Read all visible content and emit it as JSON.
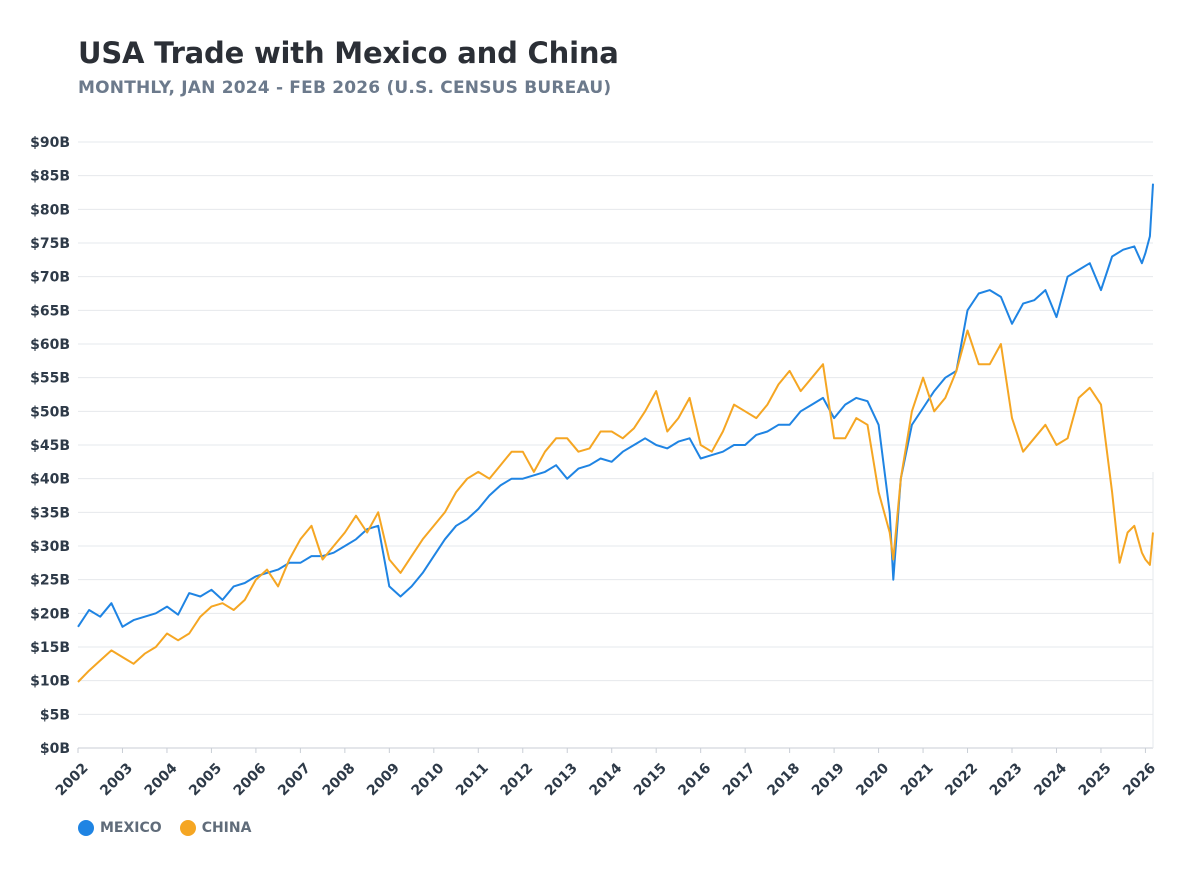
{
  "header": {
    "title": "USA Trade with Mexico and China",
    "subtitle": "MONTHLY, JAN 2024 - FEB 2026 (U.S. CENSUS BUREAU)"
  },
  "colors": {
    "mexico": "#1f84e3",
    "china": "#f5a623",
    "grid": "#e6e8ec",
    "axis": "#c9ced6"
  },
  "chart_data": {
    "type": "line",
    "title": "USA Trade with Mexico and China",
    "subtitle": "MONTHLY, JAN 2024 - FEB 2026 (U.S. CENSUS BUREAU)",
    "xlabel": "",
    "ylabel": "",
    "x_range": [
      2002,
      2026.17
    ],
    "ylim": [
      0,
      90
    ],
    "y_ticks": [
      0,
      5,
      10,
      15,
      20,
      25,
      30,
      35,
      40,
      45,
      50,
      55,
      60,
      65,
      70,
      75,
      80,
      85,
      90
    ],
    "y_tick_labels": [
      "$0B",
      "$5B",
      "$10B",
      "$15B",
      "$20B",
      "$25B",
      "$30B",
      "$35B",
      "$40B",
      "$45B",
      "$50B",
      "$55B",
      "$60B",
      "$65B",
      "$70B",
      "$75B",
      "$80B",
      "$85B",
      "$90B"
    ],
    "x_ticks": [
      2002,
      2003,
      2004,
      2005,
      2006,
      2007,
      2008,
      2009,
      2010,
      2011,
      2012,
      2013,
      2014,
      2015,
      2016,
      2017,
      2018,
      2019,
      2020,
      2021,
      2022,
      2023,
      2024,
      2025,
      2026
    ],
    "x_tick_labels": [
      "2002",
      "2003",
      "2004",
      "2005",
      "2006",
      "2007",
      "2008",
      "2009",
      "2010",
      "2011",
      "2012",
      "2013",
      "2014",
      "2015",
      "2016",
      "2017",
      "2018",
      "2019",
      "2020",
      "2021",
      "2022",
      "2023",
      "2024",
      "2025",
      "2026"
    ],
    "grid": true,
    "legend": "bottom-left",
    "series": [
      {
        "name": "MEXICO",
        "color": "#1f84e3",
        "points": [
          [
            2002.0,
            18
          ],
          [
            2002.25,
            20.5
          ],
          [
            2002.5,
            19.5
          ],
          [
            2002.75,
            21.5
          ],
          [
            2003.0,
            18
          ],
          [
            2003.25,
            19
          ],
          [
            2003.5,
            19.5
          ],
          [
            2003.75,
            20
          ],
          [
            2004.0,
            21
          ],
          [
            2004.25,
            19.8
          ],
          [
            2004.5,
            23
          ],
          [
            2004.75,
            22.5
          ],
          [
            2005.0,
            23.5
          ],
          [
            2005.25,
            22
          ],
          [
            2005.5,
            24
          ],
          [
            2005.75,
            24.5
          ],
          [
            2006.0,
            25.5
          ],
          [
            2006.25,
            26
          ],
          [
            2006.5,
            26.5
          ],
          [
            2006.75,
            27.5
          ],
          [
            2007.0,
            27.5
          ],
          [
            2007.25,
            28.5
          ],
          [
            2007.5,
            28.5
          ],
          [
            2007.75,
            29
          ],
          [
            2008.0,
            30
          ],
          [
            2008.25,
            31
          ],
          [
            2008.5,
            32.5
          ],
          [
            2008.75,
            33
          ],
          [
            2009.0,
            24
          ],
          [
            2009.25,
            22.5
          ],
          [
            2009.5,
            24
          ],
          [
            2009.75,
            26
          ],
          [
            2010.0,
            28.5
          ],
          [
            2010.25,
            31
          ],
          [
            2010.5,
            33
          ],
          [
            2010.75,
            34
          ],
          [
            2011.0,
            35.5
          ],
          [
            2011.25,
            37.5
          ],
          [
            2011.5,
            39
          ],
          [
            2011.75,
            40
          ],
          [
            2012.0,
            40
          ],
          [
            2012.25,
            40.5
          ],
          [
            2012.5,
            41
          ],
          [
            2012.75,
            42
          ],
          [
            2013.0,
            40
          ],
          [
            2013.25,
            41.5
          ],
          [
            2013.5,
            42
          ],
          [
            2013.75,
            43
          ],
          [
            2014.0,
            42.5
          ],
          [
            2014.25,
            44
          ],
          [
            2014.5,
            45
          ],
          [
            2014.75,
            46
          ],
          [
            2015.0,
            45
          ],
          [
            2015.25,
            44.5
          ],
          [
            2015.5,
            45.5
          ],
          [
            2015.75,
            46
          ],
          [
            2016.0,
            43
          ],
          [
            2016.25,
            43.5
          ],
          [
            2016.5,
            44
          ],
          [
            2016.75,
            45
          ],
          [
            2017.0,
            45
          ],
          [
            2017.25,
            46.5
          ],
          [
            2017.5,
            47
          ],
          [
            2017.75,
            48
          ],
          [
            2018.0,
            48
          ],
          [
            2018.25,
            50
          ],
          [
            2018.5,
            51
          ],
          [
            2018.75,
            52
          ],
          [
            2019.0,
            49
          ],
          [
            2019.25,
            51
          ],
          [
            2019.5,
            52
          ],
          [
            2019.75,
            51.5
          ],
          [
            2020.0,
            48
          ],
          [
            2020.25,
            35
          ],
          [
            2020.33,
            25
          ],
          [
            2020.5,
            40
          ],
          [
            2020.75,
            48
          ],
          [
            2021.0,
            50.5
          ],
          [
            2021.25,
            53
          ],
          [
            2021.5,
            55
          ],
          [
            2021.75,
            56
          ],
          [
            2022.0,
            65
          ],
          [
            2022.25,
            67.5
          ],
          [
            2022.5,
            68
          ],
          [
            2022.75,
            67
          ],
          [
            2023.0,
            63
          ],
          [
            2023.25,
            66
          ],
          [
            2023.5,
            66.5
          ],
          [
            2023.75,
            68
          ],
          [
            2024.0,
            64
          ],
          [
            2024.25,
            70
          ],
          [
            2024.5,
            71
          ],
          [
            2024.75,
            72
          ],
          [
            2025.0,
            68
          ],
          [
            2025.25,
            73
          ],
          [
            2025.5,
            74
          ],
          [
            2025.75,
            74.5
          ],
          [
            2025.92,
            72
          ],
          [
            2026.0,
            73.5
          ],
          [
            2026.1,
            76
          ],
          [
            2026.17,
            83.8
          ]
        ]
      },
      {
        "name": "CHINA",
        "color": "#f5a623",
        "points": [
          [
            2002.0,
            9.8
          ],
          [
            2002.25,
            11.5
          ],
          [
            2002.5,
            13
          ],
          [
            2002.75,
            14.5
          ],
          [
            2003.0,
            13.5
          ],
          [
            2003.25,
            12.5
          ],
          [
            2003.5,
            14
          ],
          [
            2003.75,
            15
          ],
          [
            2004.0,
            17
          ],
          [
            2004.25,
            16
          ],
          [
            2004.5,
            17
          ],
          [
            2004.75,
            19.5
          ],
          [
            2005.0,
            21
          ],
          [
            2005.25,
            21.5
          ],
          [
            2005.5,
            20.5
          ],
          [
            2005.75,
            22
          ],
          [
            2006.0,
            25
          ],
          [
            2006.25,
            26.5
          ],
          [
            2006.5,
            24
          ],
          [
            2006.75,
            28
          ],
          [
            2007.0,
            31
          ],
          [
            2007.25,
            33
          ],
          [
            2007.5,
            28
          ],
          [
            2007.75,
            30
          ],
          [
            2008.0,
            32
          ],
          [
            2008.25,
            34.5
          ],
          [
            2008.5,
            32
          ],
          [
            2008.75,
            35
          ],
          [
            2009.0,
            28
          ],
          [
            2009.25,
            26
          ],
          [
            2009.5,
            28.5
          ],
          [
            2009.75,
            31
          ],
          [
            2010.0,
            33
          ],
          [
            2010.25,
            35
          ],
          [
            2010.5,
            38
          ],
          [
            2010.75,
            40
          ],
          [
            2011.0,
            41
          ],
          [
            2011.25,
            40
          ],
          [
            2011.5,
            42
          ],
          [
            2011.75,
            44
          ],
          [
            2012.0,
            44
          ],
          [
            2012.25,
            41
          ],
          [
            2012.5,
            44
          ],
          [
            2012.75,
            46
          ],
          [
            2013.0,
            46
          ],
          [
            2013.25,
            44
          ],
          [
            2013.5,
            44.5
          ],
          [
            2013.75,
            47
          ],
          [
            2014.0,
            47
          ],
          [
            2014.25,
            46
          ],
          [
            2014.5,
            47.5
          ],
          [
            2014.75,
            50
          ],
          [
            2015.0,
            53
          ],
          [
            2015.25,
            47
          ],
          [
            2015.5,
            49
          ],
          [
            2015.75,
            52
          ],
          [
            2016.0,
            45
          ],
          [
            2016.25,
            44
          ],
          [
            2016.5,
            47
          ],
          [
            2016.75,
            51
          ],
          [
            2017.0,
            50
          ],
          [
            2017.25,
            49
          ],
          [
            2017.5,
            51
          ],
          [
            2017.75,
            54
          ],
          [
            2018.0,
            56
          ],
          [
            2018.25,
            53
          ],
          [
            2018.5,
            55
          ],
          [
            2018.75,
            57
          ],
          [
            2019.0,
            46
          ],
          [
            2019.25,
            46
          ],
          [
            2019.5,
            49
          ],
          [
            2019.75,
            48
          ],
          [
            2020.0,
            38
          ],
          [
            2020.25,
            32
          ],
          [
            2020.33,
            28
          ],
          [
            2020.5,
            40
          ],
          [
            2020.75,
            50
          ],
          [
            2021.0,
            55
          ],
          [
            2021.25,
            50
          ],
          [
            2021.5,
            52
          ],
          [
            2021.75,
            56
          ],
          [
            2022.0,
            62
          ],
          [
            2022.25,
            57
          ],
          [
            2022.5,
            57
          ],
          [
            2022.75,
            60
          ],
          [
            2023.0,
            49
          ],
          [
            2023.25,
            44
          ],
          [
            2023.5,
            46
          ],
          [
            2023.75,
            48
          ],
          [
            2024.0,
            45
          ],
          [
            2024.25,
            46
          ],
          [
            2024.5,
            52
          ],
          [
            2024.75,
            53.5
          ],
          [
            2025.0,
            51
          ],
          [
            2025.25,
            38
          ],
          [
            2025.42,
            27.5
          ],
          [
            2025.6,
            32
          ],
          [
            2025.75,
            33
          ],
          [
            2025.92,
            29
          ],
          [
            2026.0,
            28
          ],
          [
            2026.1,
            27.2
          ],
          [
            2026.17,
            32
          ]
        ]
      }
    ]
  },
  "legend": [
    {
      "label": "MEXICO",
      "color": "#1f84e3"
    },
    {
      "label": "CHINA",
      "color": "#f5a623"
    }
  ]
}
